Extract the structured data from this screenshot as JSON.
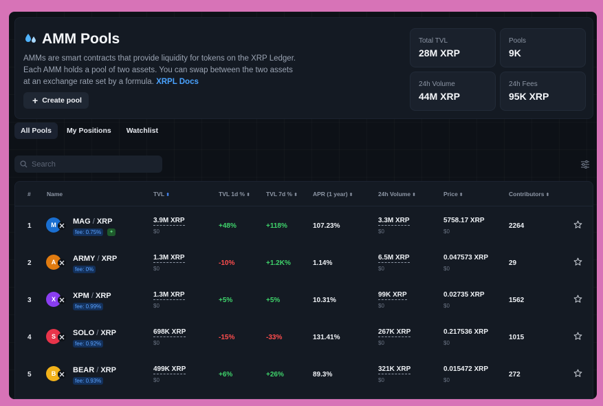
{
  "header": {
    "title": "AMM Pools",
    "description": "AMMs are smart contracts that provide liquidity for tokens on the XRP Ledger. Each AMM holds a pool of two assets. You can swap between the two assets at an exchange rate set by a formula.",
    "docs_link": "XRPL Docs",
    "create_button": "Create pool"
  },
  "stats": [
    {
      "label": "Total TVL",
      "value": "28M XRP"
    },
    {
      "label": "Pools",
      "value": "9K"
    },
    {
      "label": "24h Volume",
      "value": "44M XRP"
    },
    {
      "label": "24h Fees",
      "value": "95K XRP"
    }
  ],
  "tabs": [
    "All Pools",
    "My Positions",
    "Watchlist"
  ],
  "search": {
    "placeholder": "Search"
  },
  "table": {
    "columns": [
      "#",
      "Name",
      "TVL",
      "TVL 1d %",
      "TVL 7d %",
      "APR (1 year)",
      "24h Volume",
      "Price",
      "Contributors"
    ],
    "rows": [
      {
        "index": "1",
        "base": "MAG",
        "quote": "XRP",
        "fee": "fee: 0.75%",
        "tvl": "3.9M XRP",
        "tvl_sub": "$0",
        "tvl1d": "+48%",
        "tvl7d": "+118%",
        "apr": "107.23%",
        "volume": "3.3M XRP",
        "volume_sub": "$0",
        "price": "5758.17 XRP",
        "price_sub": "$0",
        "contributors": "2264",
        "icon_color": "#1a6fd1",
        "icon_glyph": "M"
      },
      {
        "index": "2",
        "base": "ARMY",
        "quote": "XRP",
        "fee": "fee: 0%",
        "tvl": "1.3M XRP",
        "tvl_sub": "$0",
        "tvl1d": "-10%",
        "tvl7d": "+1.2K%",
        "apr": "1.14%",
        "volume": "6.5M XRP",
        "volume_sub": "$0",
        "price": "0.047573 XRP",
        "price_sub": "$0",
        "contributors": "29",
        "icon_color": "#e07b10",
        "icon_glyph": "A"
      },
      {
        "index": "3",
        "base": "XPM",
        "quote": "XRP",
        "fee": "fee: 0.99%",
        "tvl": "1.3M XRP",
        "tvl_sub": "$0",
        "tvl1d": "+5%",
        "tvl7d": "+5%",
        "apr": "10.31%",
        "volume": "99K XRP",
        "volume_sub": "$0",
        "price": "0.02735 XRP",
        "price_sub": "$0",
        "contributors": "1562",
        "icon_color": "#8a3df0",
        "icon_glyph": "X"
      },
      {
        "index": "4",
        "base": "SOLO",
        "quote": "XRP",
        "fee": "fee: 0.92%",
        "tvl": "698K XRP",
        "tvl_sub": "$0",
        "tvl1d": "-15%",
        "tvl7d": "-33%",
        "apr": "131.41%",
        "volume": "267K XRP",
        "volume_sub": "$0",
        "price": "0.217536 XRP",
        "price_sub": "$0",
        "contributors": "1015",
        "icon_color": "#e8344a",
        "icon_glyph": "S"
      },
      {
        "index": "5",
        "base": "BEAR",
        "quote": "XRP",
        "fee": "fee: 0.93%",
        "tvl": "499K XRP",
        "tvl_sub": "$0",
        "tvl1d": "+6%",
        "tvl7d": "+26%",
        "apr": "89.3%",
        "volume": "321K XRP",
        "volume_sub": "$0",
        "price": "0.015472 XRP",
        "price_sub": "$0",
        "contributors": "272",
        "icon_color": "#f2b21a",
        "icon_glyph": "B"
      }
    ]
  }
}
